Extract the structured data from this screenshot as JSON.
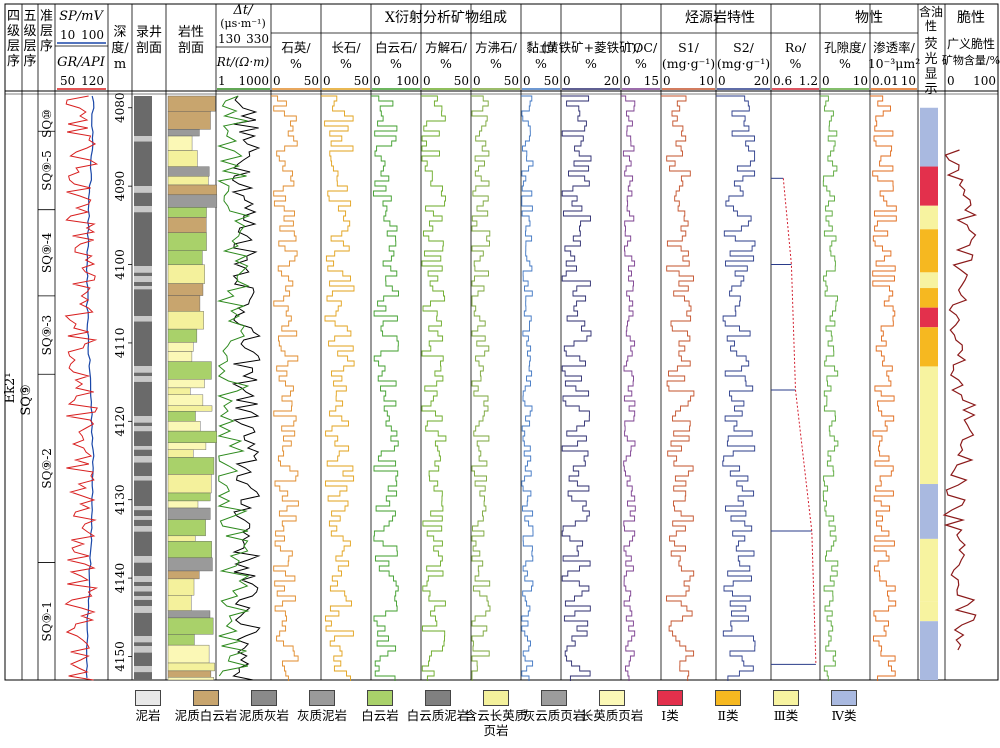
{
  "header": {
    "strata": [
      "四级层序",
      "五级层序",
      "准层序"
    ],
    "well_log": {
      "sp": "SP/mV",
      "sp_range": [
        "10",
        "100"
      ],
      "gr": "GR/API",
      "gr_range": [
        "50",
        "120"
      ]
    },
    "depth": "深度/m",
    "logging_profile": "录井剖面",
    "lithology_profile": "岩性剖面",
    "sonic": {
      "dt": "Δt/",
      "dt_unit": "(μs·m⁻¹)",
      "dt_range": [
        "130",
        "330"
      ],
      "rt": "Rt/(Ω·m)",
      "rt_range": [
        "1",
        "1000"
      ]
    },
    "xrd_group": "X衍射分析矿物组成",
    "xrd_cols": [
      {
        "label": "石英/%",
        "range": [
          "0",
          "50"
        ]
      },
      {
        "label": "长石/%",
        "range": [
          "0",
          "50"
        ]
      },
      {
        "label": "白云石/%",
        "range": [
          "0",
          "100"
        ]
      },
      {
        "label": "方解石/%",
        "range": [
          "0",
          "50"
        ]
      },
      {
        "label": "方沸石/%",
        "range": [
          "0",
          "50"
        ]
      },
      {
        "label": "黏土/%",
        "range": [
          "0",
          "50"
        ]
      },
      {
        "label": "(黄铁矿+菱铁矿)/%",
        "range": [
          "0",
          "20"
        ]
      }
    ],
    "source_group": "烃源岩特性",
    "source_cols": [
      {
        "label": "TOC/%",
        "range": [
          "0",
          "15"
        ]
      },
      {
        "label": "S1/(mg·g⁻¹)",
        "range": [
          "0",
          "10"
        ]
      },
      {
        "label": "S2/(mg·g⁻¹)",
        "range": [
          "0",
          "20"
        ]
      },
      {
        "label": "Ro/%",
        "range": [
          "0.6",
          "1.2"
        ]
      }
    ],
    "phys_group": "物性",
    "phys_cols": [
      {
        "label": "孔隙度/%",
        "range": [
          "0",
          "10"
        ]
      },
      {
        "label": "渗透率/10⁻³μm²",
        "range": [
          "0.01",
          "10"
        ]
      }
    ],
    "oil": "含油性",
    "oil_sub": "荧光显示",
    "brittle": "脆性",
    "brittle_sub": "广义脆性矿物含量/%",
    "brittle_range": [
      "0",
      "100"
    ]
  },
  "strat_labels": {
    "four": "Ek2¹",
    "five": "SQ⑨",
    "quasi": [
      "SQ⑩",
      "SQ⑨-5",
      "SQ⑨-4",
      "SQ⑨-3",
      "SQ⑨-2",
      "SQ⑨-1"
    ]
  },
  "legend": [
    {
      "label": "泥岩",
      "color": "#e8e8e8"
    },
    {
      "label": "泥质白云岩",
      "color": "#c8a56e"
    },
    {
      "label": "泥质灰岩",
      "color": "#8a8a8a"
    },
    {
      "label": "灰质泥岩",
      "color": "#9a9a9a"
    },
    {
      "label": "白云岩",
      "color": "#a9d16a"
    },
    {
      "label": "白云质泥岩",
      "color": "#808080"
    },
    {
      "label": "含云长英质页岩",
      "color": "#f4f19c"
    },
    {
      "label": "灰云质页岩",
      "color": "#9c9c9c"
    },
    {
      "label": "长英质页岩",
      "color": "#fbf8b6"
    },
    {
      "label": "Ⅰ类",
      "color": "#e3304c"
    },
    {
      "label": "Ⅱ类",
      "color": "#f6b820"
    },
    {
      "label": "Ⅲ类",
      "color": "#f7f3a0"
    },
    {
      "label": "Ⅳ类",
      "color": "#a9b9e0"
    }
  ],
  "chart_data": {
    "type": "well-log composite column",
    "depth_axis": {
      "label": "深度/m",
      "ticks": [
        4080,
        4090,
        4100,
        4110,
        4120,
        4130,
        4140,
        4150
      ],
      "range": [
        4078.5,
        4153
      ]
    },
    "colors": {
      "sp": "#1a47a8",
      "gr": "#d81f1f",
      "dt": "#000000",
      "rt": "#2e8a1e",
      "quartz": "#e08a28",
      "feldspar": "#e2a11a",
      "dolomite": "#3d9d2a",
      "calcite": "#6aaa26",
      "analcime": "#7aa638",
      "clay": "#3f76c2",
      "pyrite": "#2a2a6e",
      "toc": "#7a3c8e",
      "s1": "#c3502a",
      "s2": "#2a3b8a",
      "ro": "#d21f2f",
      "porosity": "#5aa83a",
      "perm": "#e06a1a",
      "brittle": "#8b1a1a"
    },
    "ro_points": [
      {
        "depth": 4089,
        "ro": 0.75
      },
      {
        "depth": 4100,
        "ro": 0.85
      },
      {
        "depth": 4116,
        "ro": 0.9
      },
      {
        "depth": 4134,
        "ro": 1.1
      },
      {
        "depth": 4151,
        "ro": 1.15
      }
    ],
    "oil_display": [
      {
        "top": 4080,
        "bottom": 4087.5,
        "class": "Ⅳ类"
      },
      {
        "top": 4087.5,
        "bottom": 4092.5,
        "class": "Ⅰ类"
      },
      {
        "top": 4092.5,
        "bottom": 4095.5,
        "class": "Ⅲ类"
      },
      {
        "top": 4095.5,
        "bottom": 4101,
        "class": "Ⅱ类"
      },
      {
        "top": 4101,
        "bottom": 4103,
        "class": "Ⅲ类"
      },
      {
        "top": 4103,
        "bottom": 4105.5,
        "class": "Ⅱ类"
      },
      {
        "top": 4105.5,
        "bottom": 4108,
        "class": "Ⅰ类"
      },
      {
        "top": 4108,
        "bottom": 4113,
        "class": "Ⅱ类"
      },
      {
        "top": 4113,
        "bottom": 4128,
        "class": "Ⅲ类"
      },
      {
        "top": 4128,
        "bottom": 4135,
        "class": "Ⅳ类"
      },
      {
        "top": 4135,
        "bottom": 4143,
        "class": "Ⅲ类"
      },
      {
        "top": 4143,
        "bottom": 4145.5,
        "class": "Ⅲ类"
      },
      {
        "top": 4145.5,
        "bottom": 4153,
        "class": "Ⅳ类"
      }
    ]
  }
}
